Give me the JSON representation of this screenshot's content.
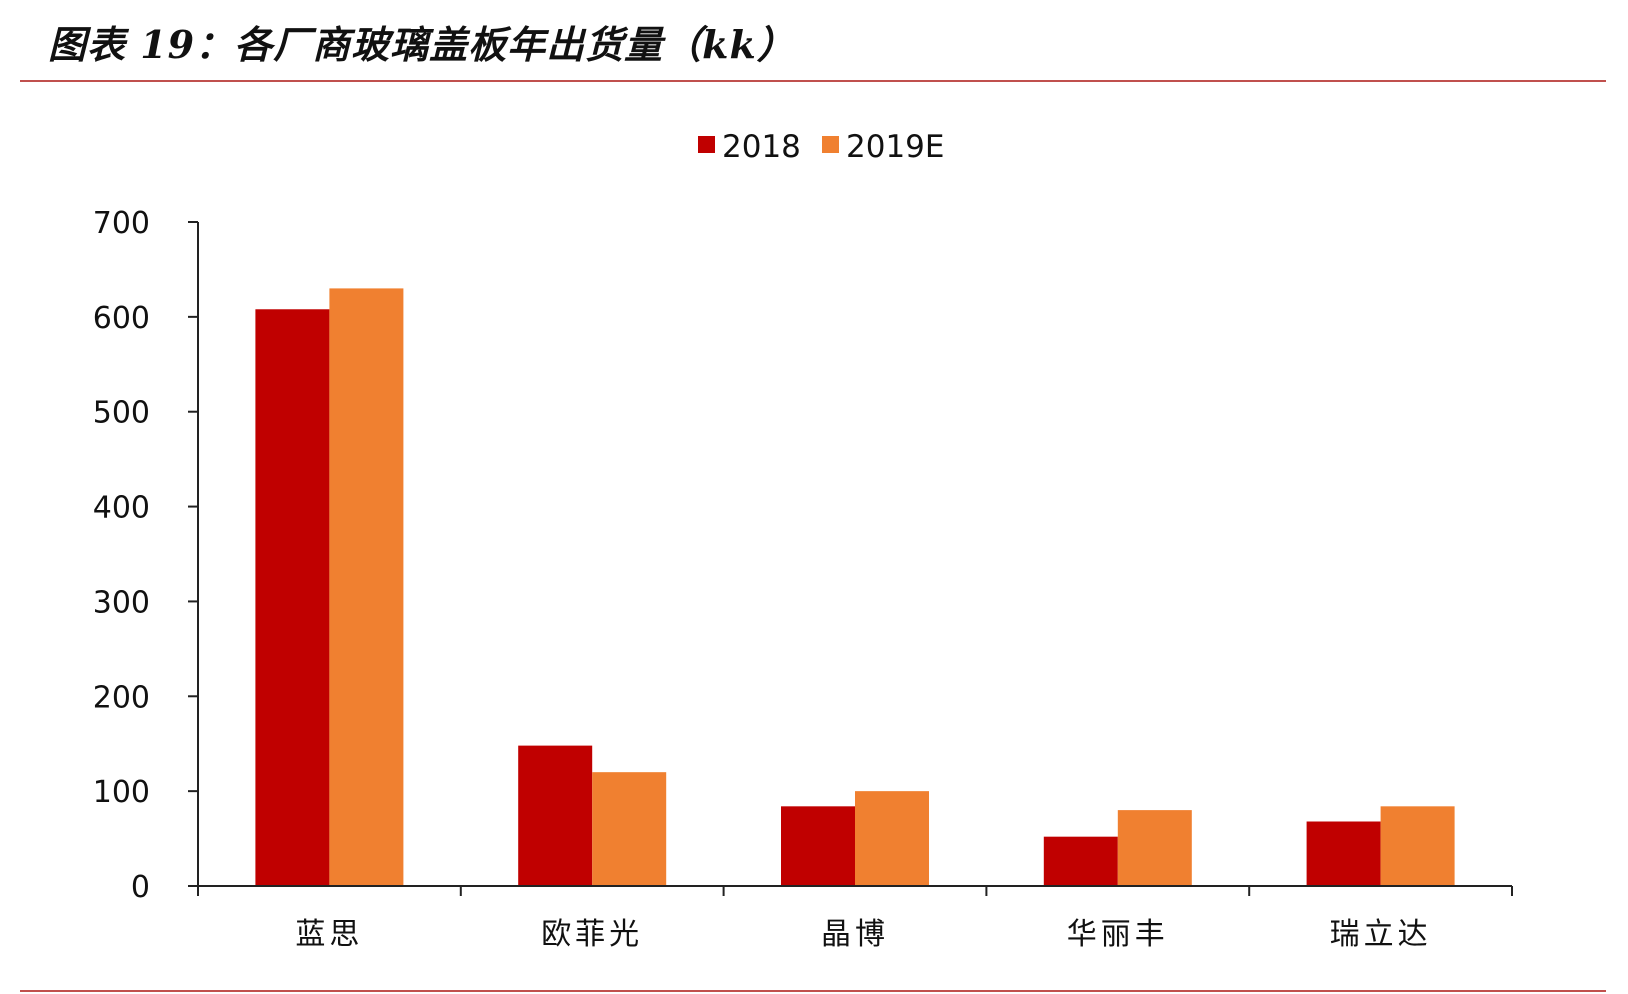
{
  "header": {
    "title": "图表 19：各厂商玻璃盖板年出货量（kk）"
  },
  "colors": {
    "series_2018": "#c00000",
    "series_2019E": "#f08030",
    "axis": "#222222",
    "rule": "#c0504d"
  },
  "chart_data": {
    "type": "bar",
    "title": "",
    "xlabel": "",
    "ylabel": "",
    "categories": [
      "蓝思",
      "欧菲光",
      "晶博",
      "华丽丰",
      "瑞立达"
    ],
    "series": [
      {
        "name": "2018",
        "values": [
          608,
          148,
          84,
          52,
          68
        ]
      },
      {
        "name": "2019E",
        "values": [
          630,
          120,
          100,
          80,
          84
        ]
      }
    ],
    "ylim": [
      0,
      700
    ],
    "yticks": [
      0,
      100,
      200,
      300,
      400,
      500,
      600,
      700
    ],
    "legend_position": "top-center",
    "grid": false
  }
}
